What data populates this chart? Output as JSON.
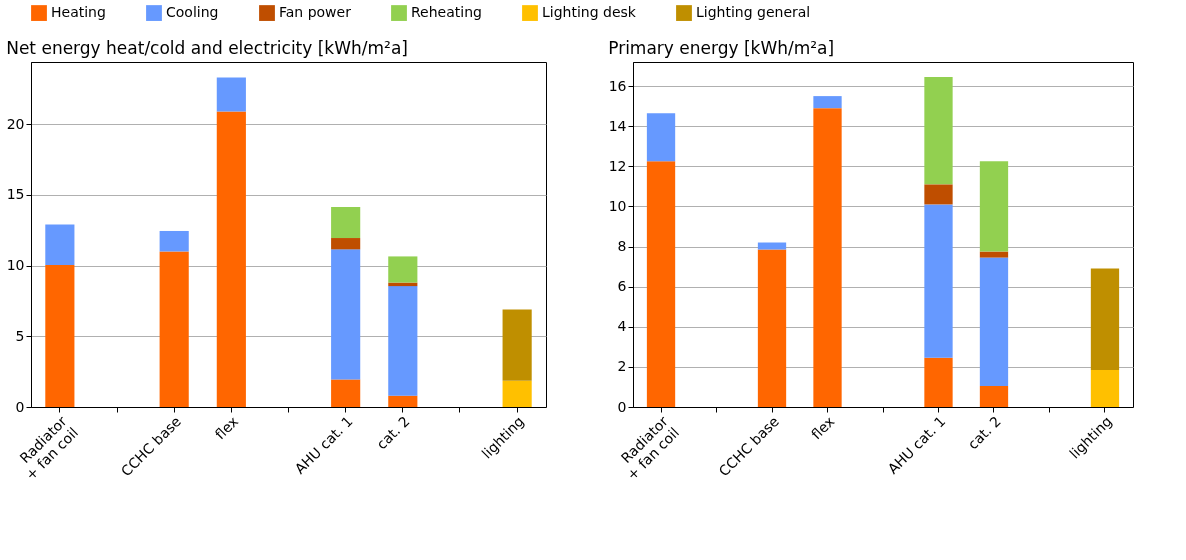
{
  "chart_data": [
    {
      "type": "bar",
      "stacked": true,
      "title": "Net energy heat/cold and electricity [kWh/m²a]",
      "categories": [
        "Radiator\n+ fan coil",
        null,
        "CCHC base",
        "flex",
        null,
        "AHU cat. 1",
        "cat. 2",
        null,
        "lighting"
      ],
      "series": [
        {
          "name": "Heating",
          "color": "#ff6600",
          "values": [
            10.05,
            null,
            11.0,
            20.9,
            null,
            1.95,
            0.8,
            null,
            null
          ]
        },
        {
          "name": "Cooling",
          "color": "#6699ff",
          "values": [
            2.85,
            null,
            1.45,
            2.4,
            null,
            9.2,
            7.75,
            null,
            null
          ]
        },
        {
          "name": "Fan power",
          "color": "#bf4e00",
          "values": [
            null,
            null,
            null,
            null,
            null,
            0.8,
            0.25,
            null,
            null
          ]
        },
        {
          "name": "Reheating",
          "color": "#92d050",
          "values": [
            null,
            null,
            null,
            null,
            null,
            2.2,
            1.85,
            null,
            null
          ]
        },
        {
          "name": "Lighting desk",
          "color": "#ffc000",
          "values": [
            null,
            null,
            null,
            null,
            null,
            null,
            null,
            null,
            1.85
          ]
        },
        {
          "name": "Lighting general",
          "color": "#bf8f00",
          "values": [
            null,
            null,
            null,
            null,
            null,
            null,
            null,
            null,
            5.05
          ]
        }
      ],
      "ylim": [
        0,
        24.4
      ],
      "yticks": [
        0,
        5,
        10,
        15,
        20
      ],
      "grid": "y",
      "legend": "top"
    },
    {
      "type": "bar",
      "stacked": true,
      "title": "Primary energy [kWh/m²a]",
      "categories": [
        "Radiator\n+ fan coil",
        null,
        "CCHC base",
        "flex",
        null,
        "AHU cat. 1",
        "cat. 2",
        null,
        "lighting"
      ],
      "series": [
        {
          "name": "Heating",
          "color": "#ff6600",
          "values": [
            12.25,
            null,
            7.85,
            14.9,
            null,
            2.45,
            1.05,
            null,
            null
          ]
        },
        {
          "name": "Cooling",
          "color": "#6699ff",
          "values": [
            2.4,
            null,
            0.35,
            0.6,
            null,
            7.65,
            6.4,
            null,
            null
          ]
        },
        {
          "name": "Fan power",
          "color": "#bf4e00",
          "values": [
            null,
            null,
            null,
            null,
            null,
            1.0,
            0.3,
            null,
            null
          ]
        },
        {
          "name": "Reheating",
          "color": "#92d050",
          "values": [
            null,
            null,
            null,
            null,
            null,
            5.35,
            4.5,
            null,
            null
          ]
        },
        {
          "name": "Lighting desk",
          "color": "#ffc000",
          "values": [
            null,
            null,
            null,
            null,
            null,
            null,
            null,
            null,
            1.85
          ]
        },
        {
          "name": "Lighting general",
          "color": "#bf8f00",
          "values": [
            null,
            null,
            null,
            null,
            null,
            null,
            null,
            null,
            5.05
          ]
        }
      ],
      "ylim": [
        0,
        17.2
      ],
      "yticks": [
        0,
        2,
        4,
        6,
        8,
        10,
        12,
        14,
        16
      ],
      "grid": "y",
      "legend": "top"
    }
  ]
}
